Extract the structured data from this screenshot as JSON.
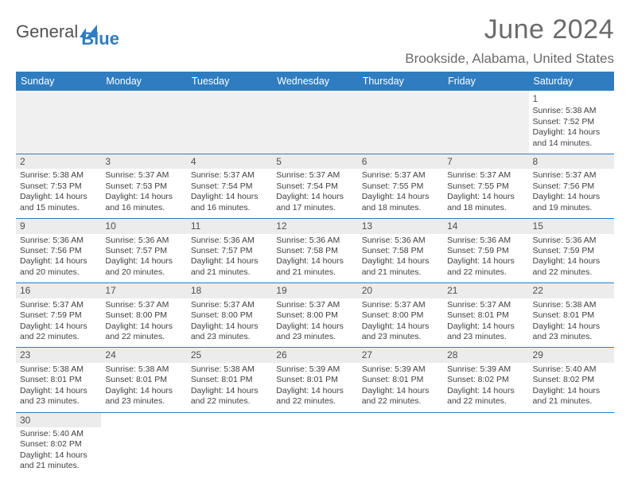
{
  "brand": {
    "word1": "General",
    "word2": "Blue"
  },
  "title": "June 2024",
  "location": "Brookside, Alabama, United States",
  "colors": {
    "accent": "#2f7dc0",
    "header_text": "#ffffff",
    "body_text": "#404040",
    "muted_bg": "#ececec"
  },
  "weekdays": [
    "Sunday",
    "Monday",
    "Tuesday",
    "Wednesday",
    "Thursday",
    "Friday",
    "Saturday"
  ],
  "layout": {
    "first_weekday_index": 6,
    "days_in_month": 30,
    "rows": 6,
    "cols": 7
  },
  "days": {
    "1": {
      "sunrise": "5:38 AM",
      "sunset": "7:52 PM",
      "daylight": "14 hours and 14 minutes."
    },
    "2": {
      "sunrise": "5:38 AM",
      "sunset": "7:53 PM",
      "daylight": "14 hours and 15 minutes."
    },
    "3": {
      "sunrise": "5:37 AM",
      "sunset": "7:53 PM",
      "daylight": "14 hours and 16 minutes."
    },
    "4": {
      "sunrise": "5:37 AM",
      "sunset": "7:54 PM",
      "daylight": "14 hours and 16 minutes."
    },
    "5": {
      "sunrise": "5:37 AM",
      "sunset": "7:54 PM",
      "daylight": "14 hours and 17 minutes."
    },
    "6": {
      "sunrise": "5:37 AM",
      "sunset": "7:55 PM",
      "daylight": "14 hours and 18 minutes."
    },
    "7": {
      "sunrise": "5:37 AM",
      "sunset": "7:55 PM",
      "daylight": "14 hours and 18 minutes."
    },
    "8": {
      "sunrise": "5:37 AM",
      "sunset": "7:56 PM",
      "daylight": "14 hours and 19 minutes."
    },
    "9": {
      "sunrise": "5:36 AM",
      "sunset": "7:56 PM",
      "daylight": "14 hours and 20 minutes."
    },
    "10": {
      "sunrise": "5:36 AM",
      "sunset": "7:57 PM",
      "daylight": "14 hours and 20 minutes."
    },
    "11": {
      "sunrise": "5:36 AM",
      "sunset": "7:57 PM",
      "daylight": "14 hours and 21 minutes."
    },
    "12": {
      "sunrise": "5:36 AM",
      "sunset": "7:58 PM",
      "daylight": "14 hours and 21 minutes."
    },
    "13": {
      "sunrise": "5:36 AM",
      "sunset": "7:58 PM",
      "daylight": "14 hours and 21 minutes."
    },
    "14": {
      "sunrise": "5:36 AM",
      "sunset": "7:59 PM",
      "daylight": "14 hours and 22 minutes."
    },
    "15": {
      "sunrise": "5:36 AM",
      "sunset": "7:59 PM",
      "daylight": "14 hours and 22 minutes."
    },
    "16": {
      "sunrise": "5:37 AM",
      "sunset": "7:59 PM",
      "daylight": "14 hours and 22 minutes."
    },
    "17": {
      "sunrise": "5:37 AM",
      "sunset": "8:00 PM",
      "daylight": "14 hours and 22 minutes."
    },
    "18": {
      "sunrise": "5:37 AM",
      "sunset": "8:00 PM",
      "daylight": "14 hours and 23 minutes."
    },
    "19": {
      "sunrise": "5:37 AM",
      "sunset": "8:00 PM",
      "daylight": "14 hours and 23 minutes."
    },
    "20": {
      "sunrise": "5:37 AM",
      "sunset": "8:00 PM",
      "daylight": "14 hours and 23 minutes."
    },
    "21": {
      "sunrise": "5:37 AM",
      "sunset": "8:01 PM",
      "daylight": "14 hours and 23 minutes."
    },
    "22": {
      "sunrise": "5:38 AM",
      "sunset": "8:01 PM",
      "daylight": "14 hours and 23 minutes."
    },
    "23": {
      "sunrise": "5:38 AM",
      "sunset": "8:01 PM",
      "daylight": "14 hours and 23 minutes."
    },
    "24": {
      "sunrise": "5:38 AM",
      "sunset": "8:01 PM",
      "daylight": "14 hours and 23 minutes."
    },
    "25": {
      "sunrise": "5:38 AM",
      "sunset": "8:01 PM",
      "daylight": "14 hours and 22 minutes."
    },
    "26": {
      "sunrise": "5:39 AM",
      "sunset": "8:01 PM",
      "daylight": "14 hours and 22 minutes."
    },
    "27": {
      "sunrise": "5:39 AM",
      "sunset": "8:01 PM",
      "daylight": "14 hours and 22 minutes."
    },
    "28": {
      "sunrise": "5:39 AM",
      "sunset": "8:02 PM",
      "daylight": "14 hours and 22 minutes."
    },
    "29": {
      "sunrise": "5:40 AM",
      "sunset": "8:02 PM",
      "daylight": "14 hours and 21 minutes."
    },
    "30": {
      "sunrise": "5:40 AM",
      "sunset": "8:02 PM",
      "daylight": "14 hours and 21 minutes."
    }
  },
  "labels": {
    "sunrise_prefix": "Sunrise: ",
    "sunset_prefix": "Sunset: ",
    "daylight_prefix": "Daylight: "
  }
}
